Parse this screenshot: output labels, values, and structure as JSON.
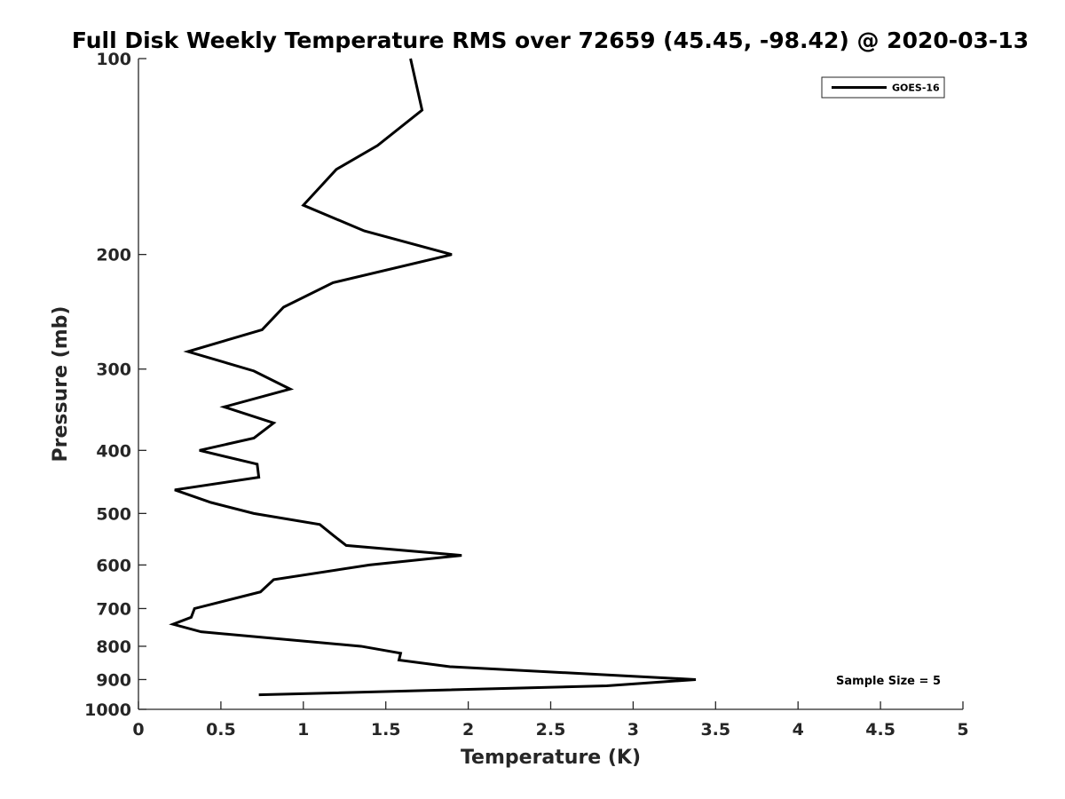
{
  "chart_data": {
    "type": "line",
    "title": "Full Disk Weekly Temperature RMS over 72659 (45.45, -98.42) @ 2020-03-13",
    "xlabel": "Temperature (K)",
    "ylabel": "Pressure (mb)",
    "xlim": [
      0,
      5
    ],
    "ylim": [
      100,
      1000
    ],
    "y_scale": "log",
    "y_reversed": true,
    "x_ticks": [
      0,
      0.5,
      1,
      1.5,
      2,
      2.5,
      3,
      3.5,
      4,
      4.5,
      5
    ],
    "x_tick_labels": [
      "0",
      "0.5",
      "1",
      "1.5",
      "2",
      "2.5",
      "3",
      "3.5",
      "4",
      "4.5",
      "5"
    ],
    "y_ticks": [
      100,
      200,
      300,
      400,
      500,
      600,
      700,
      800,
      900,
      1000
    ],
    "y_tick_labels": [
      "100",
      "200",
      "300",
      "400",
      "500",
      "600",
      "700",
      "800",
      "900",
      "1000"
    ],
    "grid": false,
    "legend_position": "top-right",
    "annotation": "Sample Size = 5",
    "series": [
      {
        "name": "GOES-16",
        "color": "#000000",
        "x": [
          1.65,
          1.72,
          1.45,
          1.2,
          1.0,
          1.37,
          1.9,
          1.18,
          0.88,
          0.75,
          0.3,
          0.7,
          0.92,
          0.52,
          0.82,
          0.7,
          0.37,
          0.72,
          0.73,
          0.22,
          0.44,
          0.7,
          1.1,
          1.18,
          1.26,
          1.96,
          1.4,
          0.82,
          0.74,
          0.34,
          0.32,
          0.21,
          0.38,
          1.35,
          1.59,
          1.58,
          1.89,
          3.38,
          2.84,
          0.73
        ],
        "y": [
          100,
          120,
          136,
          148,
          168,
          184,
          200,
          221,
          241,
          261,
          282,
          302,
          322,
          343,
          363,
          383,
          400,
          420,
          440,
          460,
          481,
          500,
          520,
          540,
          560,
          580,
          600,
          632,
          660,
          700,
          722,
          740,
          760,
          800,
          820,
          840,
          860,
          900,
          920,
          950
        ]
      }
    ]
  }
}
